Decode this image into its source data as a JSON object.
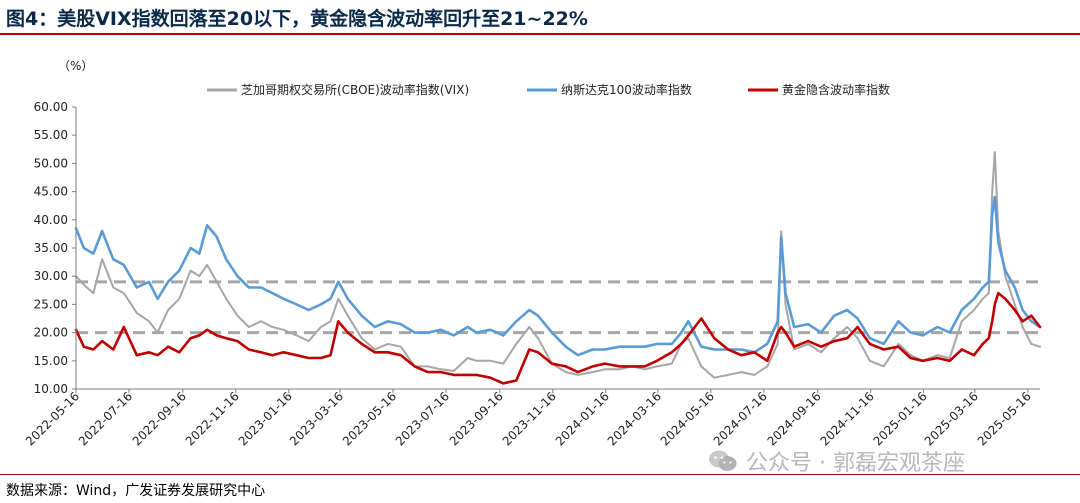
{
  "figure": {
    "title": "图4：美股VIX指数回落至20以下，黄金隐含波动率回升至21~22%",
    "source": "数据来源：Wind，广发证券发展研究中心",
    "watermark": "公众号 · 郭磊宏观茶座"
  },
  "chart_data": {
    "type": "line",
    "ylabel": "（%）",
    "ylim": [
      10,
      60
    ],
    "yticks": [
      "10.00",
      "15.00",
      "20.00",
      "25.00",
      "30.00",
      "35.00",
      "40.00",
      "45.00",
      "50.00",
      "55.00",
      "60.00"
    ],
    "xlim": [
      "2022-05-16",
      "2025-05-30"
    ],
    "xticks": [
      "2022-05-16",
      "2022-07-16",
      "2022-09-16",
      "2022-11-16",
      "2023-01-16",
      "2023-03-16",
      "2023-05-16",
      "2023-07-16",
      "2023-09-16",
      "2023-11-16",
      "2024-01-16",
      "2024-03-16",
      "2024-05-16",
      "2024-07-16",
      "2024-09-16",
      "2024-11-16",
      "2025-01-16",
      "2025-03-16",
      "2025-05-16"
    ],
    "reference_lines": [
      29,
      20
    ],
    "reference_color": "#a6a6a6",
    "legend_position": "top",
    "series": [
      {
        "name": "芝加哥期权交易所(CBOE)波动率指数(VIX)",
        "color": "#a6a6a6",
        "x": [
          "2022-05-16",
          "2022-05-25",
          "2022-06-05",
          "2022-06-15",
          "2022-06-28",
          "2022-07-10",
          "2022-07-25",
          "2022-08-08",
          "2022-08-18",
          "2022-08-30",
          "2022-09-12",
          "2022-09-25",
          "2022-10-05",
          "2022-10-14",
          "2022-10-25",
          "2022-11-05",
          "2022-11-18",
          "2022-12-01",
          "2022-12-15",
          "2022-12-28",
          "2023-01-10",
          "2023-01-25",
          "2023-02-08",
          "2023-02-22",
          "2023-03-05",
          "2023-03-14",
          "2023-03-25",
          "2023-04-10",
          "2023-04-25",
          "2023-05-10",
          "2023-05-25",
          "2023-06-10",
          "2023-06-25",
          "2023-07-10",
          "2023-07-25",
          "2023-08-10",
          "2023-08-20",
          "2023-09-05",
          "2023-09-20",
          "2023-10-05",
          "2023-10-20",
          "2023-10-30",
          "2023-11-15",
          "2023-12-01",
          "2023-12-15",
          "2024-01-01",
          "2024-01-15",
          "2024-02-01",
          "2024-02-15",
          "2024-03-01",
          "2024-03-15",
          "2024-04-01",
          "2024-04-12",
          "2024-04-20",
          "2024-05-05",
          "2024-05-20",
          "2024-06-05",
          "2024-06-20",
          "2024-07-05",
          "2024-07-20",
          "2024-08-01",
          "2024-08-05",
          "2024-08-10",
          "2024-08-20",
          "2024-09-05",
          "2024-09-20",
          "2024-10-05",
          "2024-10-20",
          "2024-11-01",
          "2024-11-15",
          "2024-12-01",
          "2024-12-18",
          "2025-01-01",
          "2025-01-15",
          "2025-02-01",
          "2025-02-15",
          "2025-03-01",
          "2025-03-15",
          "2025-03-25",
          "2025-04-01",
          "2025-04-05",
          "2025-04-08",
          "2025-04-12",
          "2025-04-20",
          "2025-05-01",
          "2025-05-10",
          "2025-05-20",
          "2025-05-30"
        ],
        "values": [
          30,
          28.5,
          27,
          33,
          28,
          27,
          23.5,
          22,
          20,
          24,
          26,
          31,
          30,
          32,
          29,
          26,
          23,
          21,
          22,
          21,
          20.5,
          19.5,
          18.5,
          21,
          22,
          26,
          23,
          19,
          17,
          18,
          17.5,
          14,
          14,
          13.5,
          13.2,
          15.5,
          15,
          15,
          14.5,
          18,
          21,
          19,
          14.5,
          13,
          12.5,
          13,
          13.5,
          13.5,
          14,
          13.5,
          14,
          14.5,
          18,
          19,
          14,
          12,
          12.5,
          13,
          12.5,
          14,
          18,
          38,
          25,
          17,
          18,
          16.5,
          19,
          21,
          19,
          15,
          14,
          18,
          16,
          15,
          16,
          15.5,
          22,
          24,
          26,
          27,
          45,
          52,
          38,
          30,
          25,
          21,
          18,
          17.5
        ]
      },
      {
        "name": "纳斯达克100波动率指数",
        "color": "#5b9bd5",
        "x": [
          "2022-05-16",
          "2022-05-25",
          "2022-06-05",
          "2022-06-15",
          "2022-06-28",
          "2022-07-10",
          "2022-07-25",
          "2022-08-08",
          "2022-08-18",
          "2022-08-30",
          "2022-09-12",
          "2022-09-25",
          "2022-10-05",
          "2022-10-14",
          "2022-10-25",
          "2022-11-05",
          "2022-11-18",
          "2022-12-01",
          "2022-12-15",
          "2022-12-28",
          "2023-01-10",
          "2023-01-25",
          "2023-02-08",
          "2023-02-22",
          "2023-03-05",
          "2023-03-14",
          "2023-03-25",
          "2023-04-10",
          "2023-04-25",
          "2023-05-10",
          "2023-05-25",
          "2023-06-10",
          "2023-06-25",
          "2023-07-10",
          "2023-07-25",
          "2023-08-10",
          "2023-08-20",
          "2023-09-05",
          "2023-09-20",
          "2023-10-05",
          "2023-10-20",
          "2023-10-30",
          "2023-11-15",
          "2023-12-01",
          "2023-12-15",
          "2024-01-01",
          "2024-01-15",
          "2024-02-01",
          "2024-02-15",
          "2024-03-01",
          "2024-03-15",
          "2024-04-01",
          "2024-04-12",
          "2024-04-20",
          "2024-05-05",
          "2024-05-20",
          "2024-06-05",
          "2024-06-20",
          "2024-07-05",
          "2024-07-20",
          "2024-08-01",
          "2024-08-05",
          "2024-08-10",
          "2024-08-20",
          "2024-09-05",
          "2024-09-20",
          "2024-10-05",
          "2024-10-20",
          "2024-11-01",
          "2024-11-15",
          "2024-12-01",
          "2024-12-18",
          "2025-01-01",
          "2025-01-15",
          "2025-02-01",
          "2025-02-15",
          "2025-03-01",
          "2025-03-15",
          "2025-03-25",
          "2025-04-01",
          "2025-04-05",
          "2025-04-08",
          "2025-04-12",
          "2025-04-20",
          "2025-05-01",
          "2025-05-10",
          "2025-05-20",
          "2025-05-30"
        ],
        "values": [
          38.5,
          35,
          34,
          38,
          33,
          32,
          28,
          29,
          26,
          29,
          31,
          35,
          34,
          39,
          37,
          33,
          30,
          28,
          28,
          27,
          26,
          25,
          24,
          25,
          26,
          29,
          26,
          23,
          21,
          22,
          21.5,
          20,
          20,
          20.5,
          19.5,
          21,
          20,
          20.5,
          19.5,
          22,
          24,
          23,
          20,
          17.5,
          16,
          17,
          17,
          17.5,
          17.5,
          17.5,
          18,
          18,
          20,
          22,
          17.5,
          17,
          17,
          17,
          16.5,
          18,
          22,
          37,
          27,
          21,
          21.5,
          20,
          23,
          24,
          22.5,
          19,
          18,
          22,
          20,
          19.5,
          21,
          20,
          24,
          26,
          28,
          29,
          41,
          44,
          36,
          31,
          28,
          24,
          22,
          21
        ]
      },
      {
        "name": "黄金隐含波动率指数",
        "color": "#c00000",
        "x": [
          "2022-05-16",
          "2022-05-25",
          "2022-06-05",
          "2022-06-15",
          "2022-06-28",
          "2022-07-10",
          "2022-07-25",
          "2022-08-08",
          "2022-08-18",
          "2022-08-30",
          "2022-09-12",
          "2022-09-25",
          "2022-10-05",
          "2022-10-14",
          "2022-10-25",
          "2022-11-05",
          "2022-11-18",
          "2022-12-01",
          "2022-12-15",
          "2022-12-28",
          "2023-01-10",
          "2023-01-25",
          "2023-02-08",
          "2023-02-22",
          "2023-03-05",
          "2023-03-14",
          "2023-03-25",
          "2023-04-10",
          "2023-04-25",
          "2023-05-10",
          "2023-05-25",
          "2023-06-10",
          "2023-06-25",
          "2023-07-10",
          "2023-07-25",
          "2023-08-10",
          "2023-08-20",
          "2023-09-05",
          "2023-09-20",
          "2023-10-05",
          "2023-10-20",
          "2023-10-30",
          "2023-11-15",
          "2023-12-01",
          "2023-12-15",
          "2024-01-01",
          "2024-01-15",
          "2024-02-01",
          "2024-02-15",
          "2024-03-01",
          "2024-03-15",
          "2024-04-01",
          "2024-04-12",
          "2024-04-20",
          "2024-05-05",
          "2024-05-20",
          "2024-06-05",
          "2024-06-20",
          "2024-07-05",
          "2024-07-20",
          "2024-08-01",
          "2024-08-05",
          "2024-08-10",
          "2024-08-20",
          "2024-09-05",
          "2024-09-20",
          "2024-10-05",
          "2024-10-20",
          "2024-11-01",
          "2024-11-15",
          "2024-12-01",
          "2024-12-18",
          "2025-01-01",
          "2025-01-15",
          "2025-02-01",
          "2025-02-15",
          "2025-03-01",
          "2025-03-15",
          "2025-03-25",
          "2025-04-01",
          "2025-04-05",
          "2025-04-08",
          "2025-04-12",
          "2025-04-20",
          "2025-05-01",
          "2025-05-10",
          "2025-05-20",
          "2025-05-30"
        ],
        "values": [
          20.5,
          17.5,
          17,
          18.5,
          17,
          21,
          16,
          16.5,
          16,
          17.5,
          16.5,
          19,
          19.5,
          20.5,
          19.5,
          19,
          18.5,
          17,
          16.5,
          16,
          16.5,
          16,
          15.5,
          15.5,
          16,
          22,
          20,
          18,
          16.5,
          16.5,
          16,
          14,
          13,
          13,
          12.5,
          12.5,
          12.5,
          12,
          11,
          11.5,
          17,
          16.5,
          14.5,
          14,
          13,
          14,
          14.5,
          14,
          14,
          14,
          15,
          16.5,
          18,
          19.5,
          22.5,
          19,
          17,
          16,
          16.5,
          15,
          20,
          21,
          20,
          17.5,
          18.5,
          17.5,
          18.5,
          19,
          21,
          18,
          17,
          17.5,
          15.5,
          15,
          15.5,
          15,
          17,
          16,
          18,
          19,
          22,
          25,
          27,
          26,
          24,
          22,
          23,
          21
        ]
      }
    ]
  }
}
